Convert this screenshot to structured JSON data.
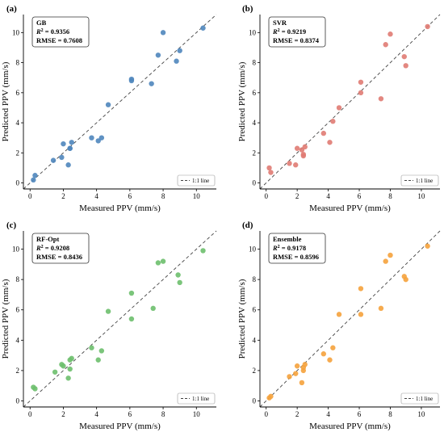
{
  "chart_data": [
    {
      "type": "scatter",
      "panel_label": "(a)",
      "model": "GB",
      "r2": "0.9356",
      "rmse_label": "RMSE = 0.7608",
      "color": "#4f86bd",
      "xlabel": "Measured PPV (mm/s)",
      "ylabel": "Predicted PPV (mm/s)",
      "xlim": [
        -0.4,
        11.2
      ],
      "ylim": [
        -0.4,
        11.2
      ],
      "xticks": [
        0,
        2,
        4,
        6,
        8,
        10
      ],
      "yticks": [
        0,
        2,
        4,
        6,
        8,
        10
      ],
      "legend": "1:1 line",
      "legend_position": "bottom-right",
      "grid": false,
      "x": [
        0.2,
        0.3,
        1.4,
        1.9,
        2.0,
        2.3,
        2.4,
        2.4,
        2.5,
        3.7,
        4.1,
        4.3,
        4.7,
        6.1,
        6.1,
        7.3,
        7.7,
        8.0,
        8.8,
        9.0,
        10.4
      ],
      "y": [
        0.2,
        0.5,
        1.5,
        1.7,
        2.6,
        1.2,
        2.3,
        2.3,
        2.7,
        3.0,
        2.8,
        3.0,
        5.2,
        6.8,
        6.9,
        6.6,
        8.5,
        10.0,
        8.1,
        8.8,
        10.3
      ]
    },
    {
      "type": "scatter",
      "panel_label": "(b)",
      "model": "SVR",
      "r2": "0.9219",
      "rmse_label": "RMSE = 0.8374",
      "color": "#e07b73",
      "xlabel": "Measured PPV (mm/s)",
      "ylabel": "Predicted PPV (mm/s)",
      "xlim": [
        -0.4,
        11.2
      ],
      "ylim": [
        -0.4,
        11.2
      ],
      "xticks": [
        0,
        2,
        4,
        6,
        8,
        10
      ],
      "yticks": [
        0,
        2,
        4,
        6,
        8,
        10
      ],
      "legend": "1:1 line",
      "legend_position": "bottom-right",
      "grid": false,
      "x": [
        0.2,
        0.3,
        1.5,
        1.9,
        2.0,
        2.3,
        2.4,
        2.4,
        2.5,
        3.7,
        4.1,
        4.3,
        4.7,
        6.1,
        6.1,
        7.4,
        7.7,
        8.0,
        8.9,
        9.0,
        10.4
      ],
      "y": [
        1.0,
        0.7,
        1.3,
        1.2,
        2.3,
        2.2,
        1.8,
        1.9,
        2.4,
        3.3,
        2.7,
        4.1,
        5.0,
        6.0,
        6.7,
        5.6,
        9.2,
        9.9,
        8.4,
        7.8,
        10.4
      ]
    },
    {
      "type": "scatter",
      "panel_label": "(c)",
      "model": "RF-Opt",
      "r2": "0.9208",
      "rmse_label": "RMSE = 0.8436",
      "color": "#6dbf6d",
      "xlabel": "Measured PPV (mm/s)",
      "ylabel": "Predicted PPV (mm/s)",
      "xlim": [
        -0.4,
        11.2
      ],
      "ylim": [
        -0.4,
        11.2
      ],
      "xticks": [
        0,
        2,
        4,
        6,
        8,
        10
      ],
      "yticks": [
        0,
        2,
        4,
        6,
        8,
        10
      ],
      "legend": "1:1 line",
      "legend_position": "bottom-right",
      "grid": false,
      "x": [
        0.2,
        0.3,
        1.5,
        1.9,
        2.0,
        2.3,
        2.4,
        2.4,
        2.5,
        3.7,
        4.1,
        4.3,
        4.7,
        6.1,
        6.1,
        7.4,
        7.7,
        8.0,
        8.9,
        9.0,
        10.4
      ],
      "y": [
        0.9,
        0.8,
        1.9,
        2.4,
        2.3,
        1.5,
        2.7,
        2.1,
        2.8,
        3.5,
        2.7,
        3.3,
        5.9,
        5.4,
        7.1,
        6.1,
        9.1,
        9.2,
        8.3,
        7.8,
        9.9
      ]
    },
    {
      "type": "scatter",
      "panel_label": "(d)",
      "model": "Ensemble",
      "r2": "0.9178",
      "rmse_label": "RMSE = 0.8596",
      "color": "#f5a23c",
      "xlabel": "Measured PPV (mm/s)",
      "ylabel": "Predicted PPV (mm/s)",
      "xlim": [
        -0.4,
        11.2
      ],
      "ylim": [
        -0.4,
        11.2
      ],
      "xticks": [
        0,
        2,
        4,
        6,
        8,
        10
      ],
      "yticks": [
        0,
        2,
        4,
        6,
        8,
        10
      ],
      "legend": "1:1 line",
      "legend_position": "bottom-right",
      "grid": false,
      "x": [
        0.2,
        0.3,
        1.5,
        1.9,
        2.0,
        2.3,
        2.4,
        2.4,
        2.5,
        3.7,
        4.1,
        4.3,
        4.7,
        6.1,
        6.1,
        7.4,
        7.7,
        8.0,
        8.9,
        9.0,
        10.4
      ],
      "y": [
        0.2,
        0.3,
        1.6,
        1.8,
        2.3,
        1.2,
        2.0,
        2.2,
        2.4,
        3.1,
        2.7,
        3.5,
        5.7,
        5.7,
        7.4,
        6.1,
        9.2,
        9.6,
        8.2,
        8.0,
        10.2
      ]
    }
  ]
}
